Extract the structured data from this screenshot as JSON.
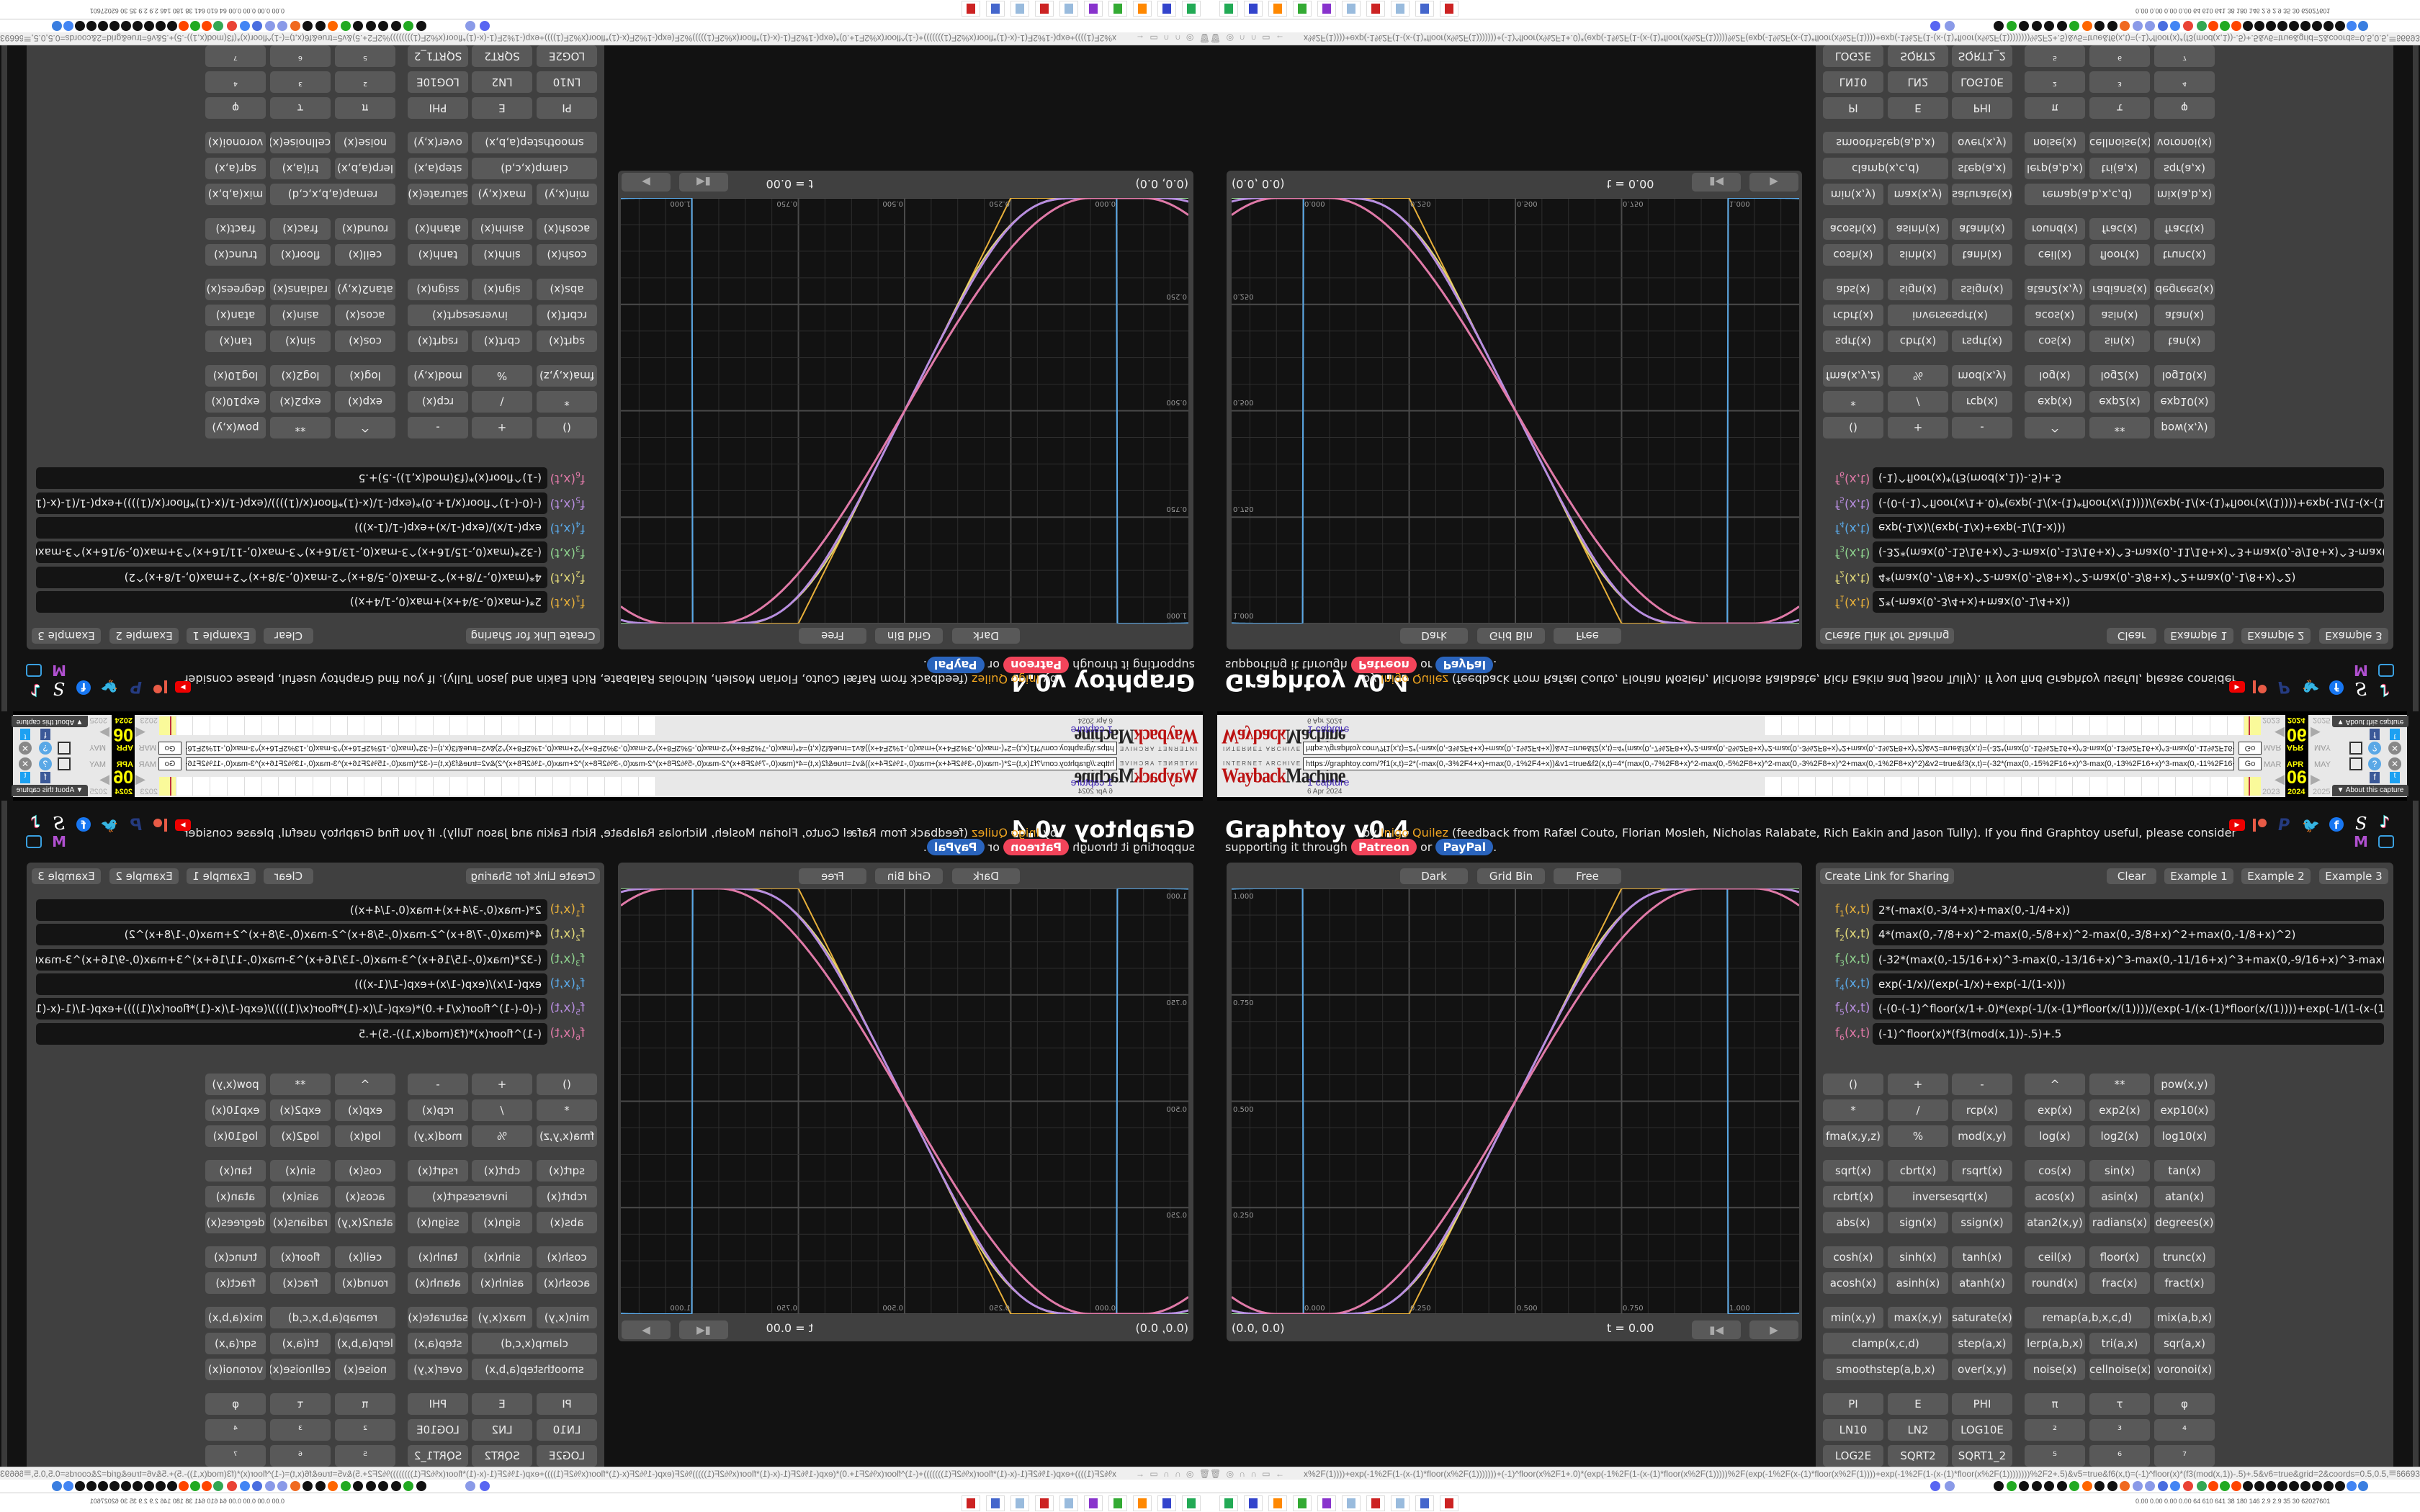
{
  "wayback": {
    "brand_top": "INTERNET ARCHIVE",
    "brand_a": "Wayback",
    "brand_b": "Machine",
    "url": "https://graphtoy.com/?f1(x,t)=2*(-max(0,-3%2F4+x)+max(0,-1%2F4+x))&v1=true&f2(x,t)=4*(max(0,-7%2F8+x)^2-max(0,-5%2F8+x)^2-max(0,-3%2F8+x)^2+max(0,-1%2F8+x)^2)&v2=true&f3(x,t)=(-32*(max(0,-15%2F16+x)^3-max(0,-13%2F16+x)^3-max(0,-11%2F16+x",
    "go": "Go",
    "captures": "1 capture",
    "capture_date": "6 Apr 2024",
    "months": [
      "MAR",
      "APR",
      "MAY"
    ],
    "day": "06",
    "years": [
      "2023",
      "2024",
      "2025"
    ],
    "about": "▼ About this capture"
  },
  "header": {
    "title": "Graphtoy v0.4",
    "by": "by",
    "author": "Inigo Quilez",
    "feedback": "(feedback from Rafæl Couto, Florian Mosleh, Nicholas Ralabate, Rich Eakin and Jason Tully). If you find Graphtoy useful, please consider",
    "supporting": "supporting it through",
    "patreon": "Patreon",
    "or": "or",
    "paypal": "PayPal",
    "period": ".",
    "social_icons": [
      "youtube-icon",
      "patreon-icon",
      "paypal-icon",
      "twitter-icon",
      "facebook-icon",
      "shadertoy-icon",
      "tiktok-icon",
      "mastodon-icon",
      "bilibili-icon"
    ],
    "colors": {
      "patreon": "#f2445a",
      "paypal": "#2a64bd",
      "author": "#f0a520"
    }
  },
  "graph": {
    "buttons": [
      "Dark",
      "Grid Bin",
      "Free"
    ],
    "x_ticks": [
      "0.000",
      "0.250",
      "0.500",
      "0.750",
      "1.000"
    ],
    "y_ticks": [
      "1.000",
      "0.750",
      "0.500",
      "0.250"
    ],
    "x_range": [
      -0.168,
      1.168
    ],
    "y_range": [
      0,
      1
    ],
    "coords": "(0.0, 0.0)",
    "time": "t = 0.00"
  },
  "settings": {
    "share": "Create Link for Sharing",
    "clear": "Clear",
    "examples": [
      "Example 1",
      "Example 2",
      "Example 3"
    ],
    "functions": [
      {
        "name": "f",
        "sub": "1",
        "args": "(x,t) =",
        "expr": "2*(-max(0,-3/4+x)+max(0,-1/4+x))",
        "color": "#e8b03a"
      },
      {
        "name": "f",
        "sub": "2",
        "args": "(x,t) =",
        "expr": "4*(max(0,-7/8+x)^2-max(0,-5/8+x)^2-max(0,-3/8+x)^2+max(0,-1/8+x)^2)",
        "color": "#e2d97a"
      },
      {
        "name": "f",
        "sub": "3",
        "args": "(x,t) =",
        "expr": "(-32*(max(0,-15/16+x)^3-max(0,-13/16+x)^3-max(0,-11/16+x)^3+max(0,-9/16+x)^3-max(0,-7/16+x)^3+m",
        "color": "#8fd48f"
      },
      {
        "name": "f",
        "sub": "4",
        "args": "(x,t) =",
        "expr": "exp(-1/x)/(exp(-1/x)+exp(-1/(1-x)))",
        "color": "#5aa8e6"
      },
      {
        "name": "f",
        "sub": "5",
        "args": "(x,t) =",
        "expr": "(-(0-(-1)^floor(x/1+.0)*(exp(-1/(x-(1)*floor(x/(1))))/(exp(-1/(x-(1)*floor(x/(1))))+exp(-1/(1-(x-(1)*floor(x/(1)))))",
        "color": "#b88ee0"
      },
      {
        "name": "f",
        "sub": "6",
        "args": "(x,t) =",
        "expr": "(-1)^floor(x)*(f3(mod(x,1))-.5)+.5",
        "color": "#e07aa8"
      }
    ],
    "button_groups": [
      [
        [
          "()",
          "+",
          "-",
          "^",
          "**",
          "pow(x,y)"
        ],
        [
          "*",
          "/",
          "rcp(x)",
          "exp(x)",
          "exp2(x)",
          "exp10(x)"
        ],
        [
          "fma(x,y,z)",
          "%",
          "mod(x,y)",
          "log(x)",
          "log2(x)",
          "log10(x)"
        ]
      ],
      [
        [
          "sqrt(x)",
          "cbrt(x)",
          "rsqrt(x)",
          "cos(x)",
          "sin(x)",
          "tan(x)"
        ],
        [
          "rcbrt(x)",
          "inversesqrt(x)|2",
          "acos(x)",
          "asin(x)",
          "atan(x)"
        ],
        [
          "abs(x)",
          "sign(x)",
          "ssign(x)",
          "atan2(x,y)",
          "radians(x)",
          "degrees(x)"
        ]
      ],
      [
        [
          "cosh(x)",
          "sinh(x)",
          "tanh(x)",
          "ceil(x)",
          "floor(x)",
          "trunc(x)"
        ],
        [
          "acosh(x)",
          "asinh(x)",
          "atanh(x)",
          "round(x)",
          "frac(x)",
          "fract(x)"
        ]
      ],
      [
        [
          "min(x,y)",
          "max(x,y)",
          "saturate(x)",
          "remap(a,b,x,c,d)|2",
          "mix(a,b,x)"
        ],
        [
          "clamp(x,c,d)|2",
          "step(a,x)",
          "lerp(a,b,x)",
          "tri(a,x)",
          "sqr(a,x)"
        ],
        [
          "smoothstep(a,b,x)|2",
          "over(x,y)",
          "noise(x)",
          "cellnoise(x)",
          "voronoi(x)"
        ]
      ],
      [
        [
          "PI",
          "E",
          "PHI",
          "π",
          "τ",
          "φ"
        ],
        [
          "LN10",
          "LN2",
          "LOG10E",
          "²",
          "³",
          "⁴"
        ],
        [
          "LOG2E",
          "SQRT2",
          "SQRT1_2",
          "⁵",
          "⁶",
          "⁷"
        ]
      ]
    ]
  },
  "browser": {
    "address_left": "x%2F(1))))+exp(-1%2F(1-(x-(1)*floor(x%2F(1)))))))+(-1)^floor(x%2F1+.0)*(exp(-1%2F(1-(x-(1)*floor(x%2F(1)))))%2F(exp(-1%2F(x-(1)*floor(x%2F(1))))+exp(-1%2F(1-(x-(1)*floor(x%2F(1))))))))%2F2+.5)&v5=true&f6(x,t)=(-1)^floor(x)*(f3(mod(x,1))-.5)+.5&v6=true&grid=2&coords=0.5,0.5,0.6669354838709677",
    "stats": "0.00 0.00 0.00 0.00 64 610 641 38 180 146 2.9 2.9 35 30 62027601",
    "bookmark_colors": [
      "#5865f2",
      "#8a9ae8",
      "#111",
      "#2a2",
      "#111",
      "#111",
      "#111",
      "#111",
      "#2a2",
      "#f60",
      "#111",
      "#111",
      "#f06a20",
      "#8a9ae8",
      "#8a9ae8",
      "#4a6ee0",
      "#4285f4",
      "#ea4335",
      "#34a853",
      "#ff4500",
      "#2a2",
      "#ff4500",
      "#111",
      "#111",
      "#111",
      "#111",
      "#111",
      "#111",
      "#111",
      "#111",
      "#111",
      "#4285f4",
      "#3a7ee0"
    ],
    "taskbar_icons": [
      "#2a5",
      "#34c",
      "#f80",
      "#3a3",
      "#83c",
      "#9bd",
      "#c22",
      "#9bd",
      "#46c",
      "#c22"
    ]
  }
}
